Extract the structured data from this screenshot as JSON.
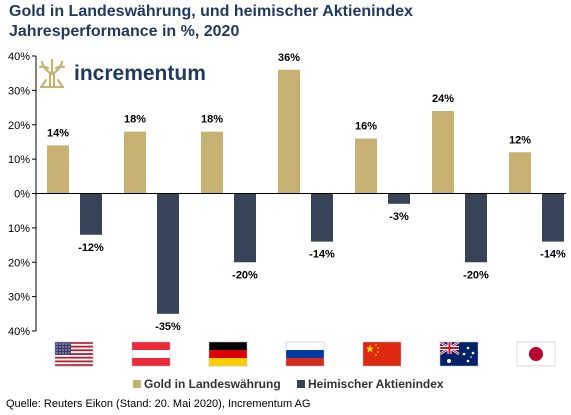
{
  "title_line1": "Gold in Landeswährung, und heimischer Aktienindex",
  "title_line2": "Jahresperformance in %, 2020",
  "logo_text": "incrementum",
  "source": "Quelle: Reuters Eikon (Stand: 20. Mai 2020), Incrementum AG",
  "colors": {
    "gold": "#c8b273",
    "index": "#374457",
    "title": "#1f3a5f",
    "grid": "#d9d9d9"
  },
  "chart_data": {
    "type": "bar",
    "categories": [
      "USA",
      "Österreich",
      "Deutschland",
      "Russland",
      "China",
      "Australien",
      "Japan"
    ],
    "category_icons": [
      "flag-usa",
      "flag-austria",
      "flag-germany",
      "flag-russia",
      "flag-china",
      "flag-australia",
      "flag-japan"
    ],
    "series": [
      {
        "name": "Gold in Landeswährung",
        "values": [
          14,
          18,
          18,
          36,
          16,
          24,
          12
        ],
        "color": "#c8b273"
      },
      {
        "name": "Heimischer Aktienindex",
        "values": [
          -12,
          -35,
          -20,
          -14,
          -3,
          -20,
          -14
        ],
        "color": "#374457"
      }
    ],
    "data_labels": [
      [
        "14%",
        "18%",
        "18%",
        "36%",
        "16%",
        "24%",
        "12%"
      ],
      [
        "-12%",
        "-35%",
        "-20%",
        "-14%",
        "-3%",
        "-20%",
        "-14%"
      ]
    ],
    "ylim": [
      -40,
      40
    ],
    "yticks": [
      -40,
      -30,
      -20,
      -10,
      0,
      10,
      20,
      30,
      40
    ],
    "ytick_labels": [
      "40%",
      "30%",
      "20%",
      "10%",
      "0%",
      "10%",
      "20%",
      "30%",
      "40%"
    ],
    "grid": false,
    "legend_position": "bottom"
  }
}
